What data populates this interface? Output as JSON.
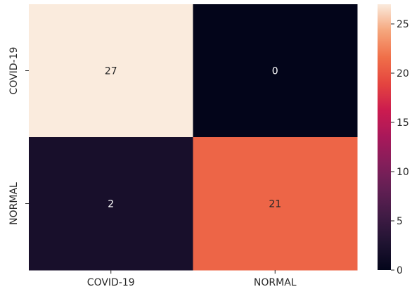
{
  "chart_data": {
    "type": "heatmap",
    "title": "",
    "xlabel": "",
    "ylabel": "",
    "x_categories": [
      "COVID-19",
      "NORMAL"
    ],
    "y_categories": [
      "COVID-19",
      "NORMAL"
    ],
    "values": [
      [
        27,
        0
      ],
      [
        2,
        21
      ]
    ],
    "annotations": true,
    "colormap": "rocket",
    "colorbar": {
      "vmin": 0,
      "vmax": 27,
      "ticks": [
        0,
        5,
        10,
        15,
        20,
        25
      ],
      "tick_labels": [
        "0",
        "5",
        "10",
        "15",
        "20",
        "25"
      ],
      "placement": "right"
    },
    "colors": {
      "low": "#03051a",
      "high": "#faebdd",
      "text_on_dark": "#ffffff",
      "text_on_light": "#262626"
    }
  }
}
